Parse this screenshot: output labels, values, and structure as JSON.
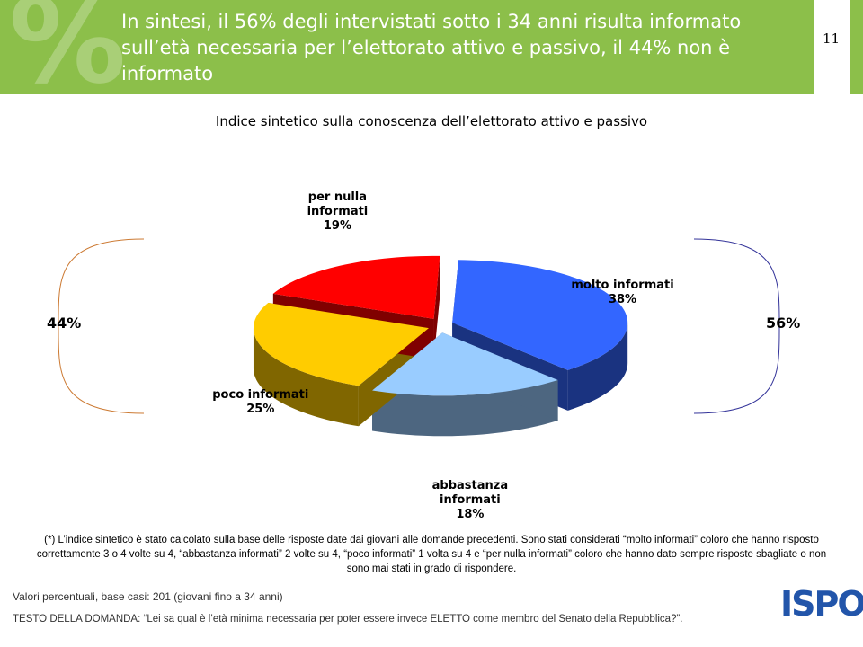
{
  "header": {
    "title": "In sintesi, il 56% degli intervistati sotto i 34 anni risulta informato sull’età necessaria per l’elettorato attivo e passivo, il 44% non è informato",
    "page": "11"
  },
  "chart_data": {
    "type": "pie",
    "title": "Indice sintetico sulla conoscenza dell’elettorato attivo e passivo",
    "categories": [
      "molto informati",
      "abbastanza informati",
      "poco informati",
      "per nulla informati"
    ],
    "values": [
      38,
      18,
      25,
      19
    ],
    "value_labels": [
      "38%",
      "18%",
      "25%",
      "19%"
    ],
    "colors": [
      "#3366ff",
      "#99ccff",
      "#ffcc00",
      "#ff0000"
    ],
    "groups": [
      {
        "value": 44,
        "label": "44%",
        "color": "#cc7a33"
      },
      {
        "value": 56,
        "label": "56%",
        "color": "#333399"
      }
    ]
  },
  "footnote": "(*) L’indice sintetico è stato calcolato sulla base delle risposte date dai giovani alle domande precedenti. Sono stati considerati “molto informati” coloro che hanno risposto correttamente 3 o 4 volte su 4, “abbastanza informati” 2 volte su 4, “poco informati” 1 volta su 4 e “per nulla informati” coloro che hanno dato sempre risposte sbagliate o non sono mai stati in grado di rispondere.",
  "base": "Valori percentuali, base casi: 201 (giovani fino a 34 anni)",
  "question": "TESTO DELLA DOMANDA: “Lei sa qual è l’età minima necessaria per poter essere invece ELETTO come membro del Senato della Repubblica?”.",
  "logo": "ISPO"
}
